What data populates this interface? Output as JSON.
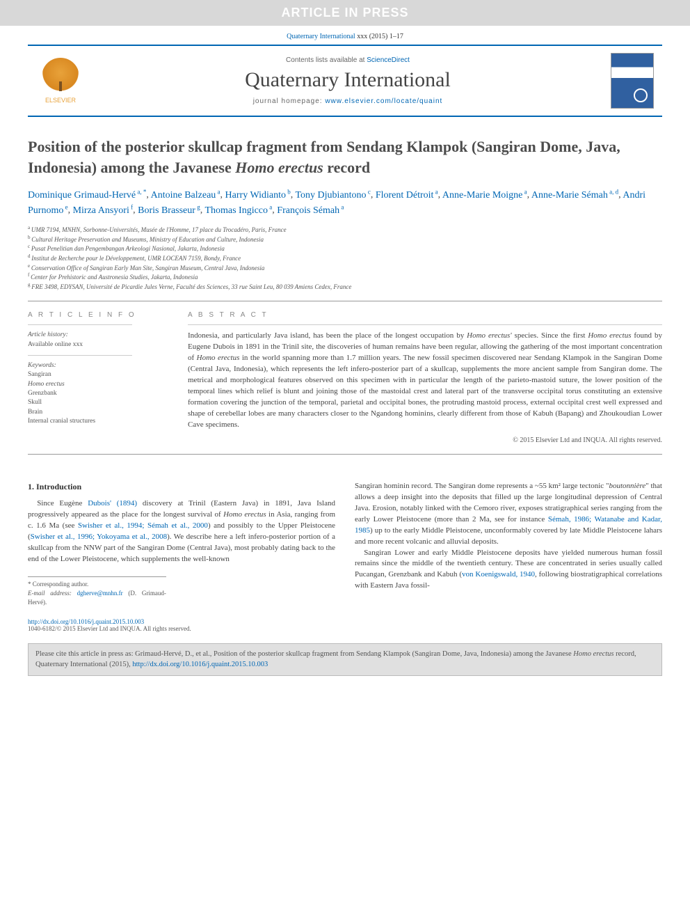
{
  "banner": {
    "text": "ARTICLE IN PRESS"
  },
  "journal_ref": {
    "journal": "Quaternary International",
    "citation": "xxx (2015) 1–17"
  },
  "header": {
    "publisher_label": "ELSEVIER",
    "contents_prefix": "Contents lists available at",
    "contents_link": "ScienceDirect",
    "journal_title": "Quaternary International",
    "homepage_prefix": "journal homepage:",
    "homepage_url": "www.elsevier.com/locate/quaint"
  },
  "article": {
    "title_part1": "Position of the posterior skullcap fragment from Sendang Klampok (Sangiran Dome, Java, Indonesia) among the Javanese ",
    "title_italic": "Homo erectus",
    "title_part2": " record",
    "authors": [
      {
        "name": "Dominique Grimaud-Hervé",
        "affs": "a, *"
      },
      {
        "name": "Antoine Balzeau",
        "affs": "a"
      },
      {
        "name": "Harry Widianto",
        "affs": "b"
      },
      {
        "name": "Tony Djubiantono",
        "affs": "c"
      },
      {
        "name": "Florent Détroit",
        "affs": "a"
      },
      {
        "name": "Anne-Marie Moigne",
        "affs": "a"
      },
      {
        "name": "Anne-Marie Sémah",
        "affs": "a, d"
      },
      {
        "name": "Andri Purnomo",
        "affs": "e"
      },
      {
        "name": "Mirza Ansyori",
        "affs": "f"
      },
      {
        "name": "Boris Brasseur",
        "affs": "g"
      },
      {
        "name": "Thomas Ingicco",
        "affs": "a"
      },
      {
        "name": "François Sémah",
        "affs": "a"
      }
    ],
    "affiliations": [
      {
        "key": "a",
        "text": "UMR 7194, MNHN, Sorbonne-Universités, Musée de l'Homme, 17 place du Trocadéro, Paris, France"
      },
      {
        "key": "b",
        "text": "Cultural Heritage Preservation and Museums, Ministry of Education and Culture, Indonesia"
      },
      {
        "key": "c",
        "text": "Pusat Penelitian dan Pengembangan Arkeologi Nasional, Jakarta, Indonesia"
      },
      {
        "key": "d",
        "text": "Institut de Recherche pour le Développement, UMR LOCEAN 7159, Bondy, France"
      },
      {
        "key": "e",
        "text": "Conservation Office of Sangiran Early Man Site, Sangiran Museum, Central Java, Indonesia"
      },
      {
        "key": "f",
        "text": "Center for Prehistoric and Austronesia Studies, Jakarta, Indonesia"
      },
      {
        "key": "g",
        "text": "FRE 3498, EDYSAN, Université de Picardie Jules Verne, Faculté des Sciences, 33 rue Saint Leu, 80 039 Amiens Cedex, France"
      }
    ]
  },
  "info": {
    "article_info_label": "A R T I C L E  I N F O",
    "history_label": "Article history:",
    "history_line": "Available online xxx",
    "keywords_label": "Keywords:",
    "keywords": [
      "Sangiran",
      "Homo erectus",
      "Grenzbank",
      "Skull",
      "Brain",
      "Internal cranial structures"
    ]
  },
  "abstract": {
    "label": "A B S T R A C T",
    "text_part1": "Indonesia, and particularly Java island, has been the place of the longest occupation by ",
    "text_italic1": "Homo erectus'",
    "text_part2": " species. Since the first ",
    "text_italic2": "Homo erectus",
    "text_part3": " found by Eugene Dubois in 1891 in the Trinil site, the discoveries of human remains have been regular, allowing the gathering of the most important concentration of ",
    "text_italic3": "Homo erectus",
    "text_part4": " in the world spanning more than 1.7 million years. The new fossil specimen discovered near Sendang Klampok in the Sangiran Dome (Central Java, Indonesia), which represents the left infero-posterior part of a skullcap, supplements the more ancient sample from Sangiran dome. The metrical and morphological features observed on this specimen with in particular the length of the parieto-mastoid suture, the lower position of the temporal lines which relief is blunt and joining those of the mastoidal crest and lateral part of the transverse occipital torus constituting an extensive formation covering the junction of the temporal, parietal and occipital bones, the protruding mastoid process, external occipital crest well expressed and shape of cerebellar lobes are many characters closer to the Ngandong hominins, clearly different from those of Kabuh (Bapang) and Zhoukoudian Lower Cave specimens.",
    "copyright": "© 2015 Elsevier Ltd and INQUA. All rights reserved."
  },
  "introduction": {
    "heading": "1. Introduction",
    "col1_p1_a": "Since Eugène ",
    "col1_p1_link1": "Dubois' (1894)",
    "col1_p1_b": " discovery at Trinil (Eastern Java) in 1891, Java Island progressively appeared as the place for the longest survival of ",
    "col1_p1_italic": "Homo erectus",
    "col1_p1_c": " in Asia, ranging from c. 1.6 Ma (see ",
    "col1_p1_link2": "Swisher et al., 1994; Sémah et al., 2000",
    "col1_p1_d": ") and possibly to the Upper Pleistocene (",
    "col1_p1_link3": "Swisher et al., 1996; Yokoyama et al., 2008",
    "col1_p1_e": "). We describe here a left infero-posterior portion of a skullcap from the NNW part of the Sangiran Dome (Central Java), most probably dating back to the end of the Lower Pleistocene, which supplements the well-known",
    "col2_p1_a": "Sangiran hominin record. The Sangiran dome represents a ~55 km² large tectonic \"",
    "col2_p1_italic": "boutonnière",
    "col2_p1_b": "\" that allows a deep insight into the deposits that filled up the large longitudinal depression of Central Java. Erosion, notably linked with the Cemoro river, exposes stratigraphical series ranging from the early Lower Pleistocene (more than 2 Ma, see for instance ",
    "col2_p1_link1": "Sémah, 1986; Watanabe and Kadar, 1985",
    "col2_p1_c": ") up to the early Middle Pleistocene, unconformably covered by late Middle Pleistocene lahars and more recent volcanic and alluvial deposits.",
    "col2_p2_a": "Sangiran Lower and early Middle Pleistocene deposits have yielded numerous human fossil remains since the middle of the twentieth century. These are concentrated in series usually called Pucangan, Grenzbank and Kabuh (",
    "col2_p2_link1": "von Koenigswald, 1940",
    "col2_p2_b": ", following biostratigraphical correlations with Eastern Java fossil-"
  },
  "corresp": {
    "star": "* Corresponding author.",
    "email_label": "E-mail address:",
    "email": "dgherve@mnhn.fr",
    "email_name": "(D. Grimaud-Hervé)."
  },
  "footer": {
    "doi": "http://dx.doi.org/10.1016/j.quaint.2015.10.003",
    "issn_line": "1040-6182/© 2015 Elsevier Ltd and INQUA. All rights reserved."
  },
  "citation_box": {
    "prefix": "Please cite this article in press as: Grimaud-Hervé, D., et al., Position of the posterior skullcap fragment from Sendang Klampok (Sangiran Dome, Java, Indonesia) among the Javanese ",
    "italic": "Homo erectus",
    "suffix": " record, Quaternary International (2015), ",
    "link": "http://dx.doi.org/10.1016/j.quaint.2015.10.003"
  },
  "colors": {
    "banner_bg": "#d8d8d8",
    "link": "#0066b3",
    "rule": "#0066b3",
    "text": "#444444",
    "orange": "#e8a23a"
  }
}
